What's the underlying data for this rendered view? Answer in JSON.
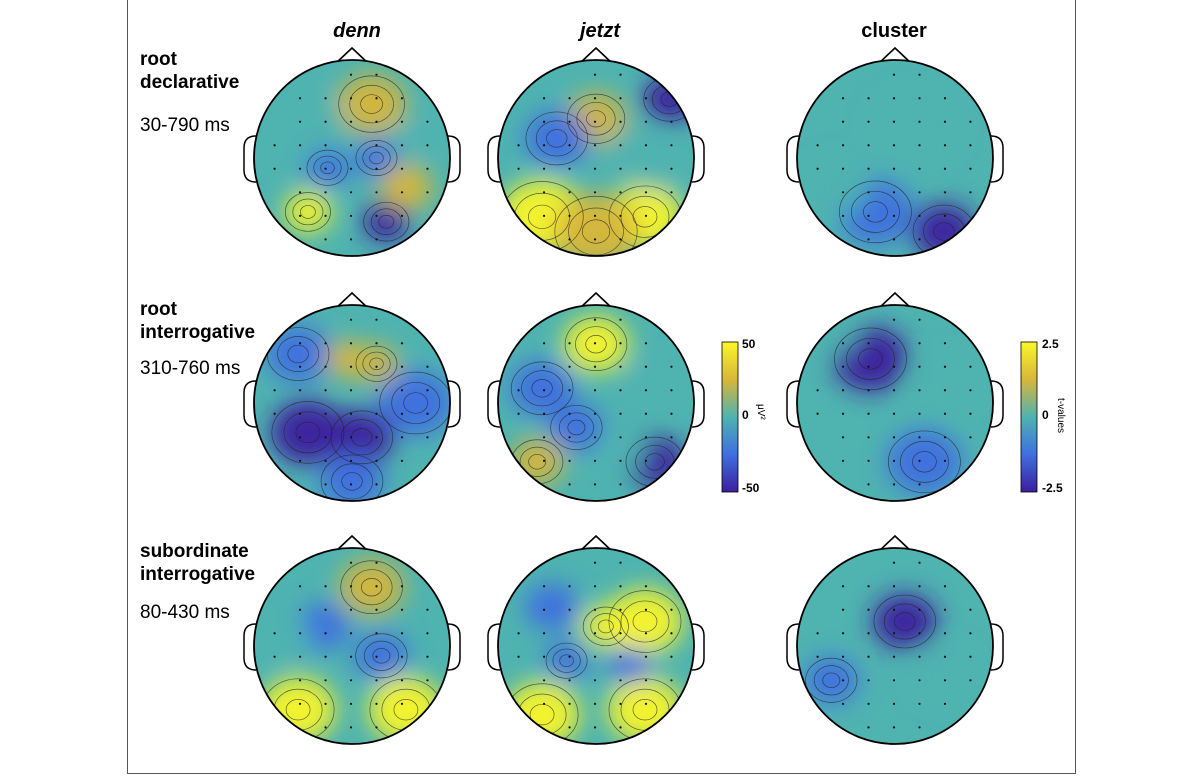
{
  "columns": [
    {
      "label": "denn",
      "italic": true
    },
    {
      "label": "jetzt",
      "italic": true
    },
    {
      "label": "cluster",
      "italic": false
    }
  ],
  "rows": [
    {
      "title": "root\ndeclarative",
      "time": "30-790 ms"
    },
    {
      "title": "root\ninterrogative",
      "time": "310-760 ms"
    },
    {
      "title": "subordinate\ninterrogative",
      "time": "80-430 ms"
    }
  ],
  "colorbars": [
    {
      "max": "50",
      "mid": "0",
      "min": "-50",
      "unit": "μV²"
    },
    {
      "max": "2.5",
      "mid": "0",
      "min": "-2.5",
      "unit": "t-values"
    }
  ],
  "colors": {
    "low": "#3b1f9e",
    "midlow": "#3f6fe0",
    "mid": "#4fb3b0",
    "midhigh": "#d8b63a",
    "high": "#fbf727"
  },
  "topomaps": [
    {
      "row": 0,
      "col": 0,
      "scale": "uv",
      "blobs": [
        [
          0.2,
          -0.55,
          0.32,
          0.6
        ],
        [
          -0.55,
          -0.3,
          0.45,
          0.3
        ],
        [
          -0.25,
          0.1,
          0.2,
          -0.6
        ],
        [
          0.25,
          0.0,
          0.2,
          -0.5
        ],
        [
          -0.45,
          0.55,
          0.22,
          0.9
        ],
        [
          0.35,
          0.65,
          0.22,
          -0.8
        ],
        [
          0.55,
          0.3,
          0.25,
          0.4
        ],
        [
          0.6,
          -0.2,
          0.2,
          0.2
        ]
      ]
    },
    {
      "row": 0,
      "col": 1,
      "scale": "uv",
      "blobs": [
        [
          0.0,
          -0.4,
          0.28,
          0.7
        ],
        [
          -0.4,
          -0.2,
          0.3,
          -0.5
        ],
        [
          0.75,
          -0.6,
          0.25,
          -0.8
        ],
        [
          0.4,
          -0.1,
          0.25,
          -0.3
        ],
        [
          -0.55,
          0.6,
          0.4,
          1.0
        ],
        [
          0.5,
          0.6,
          0.35,
          0.9
        ],
        [
          0.0,
          0.75,
          0.4,
          0.7
        ],
        [
          0.6,
          0.15,
          0.2,
          -0.2
        ]
      ]
    },
    {
      "row": 0,
      "col": 2,
      "scale": "t",
      "blobs": [
        [
          -0.2,
          0.55,
          0.35,
          -0.5
        ],
        [
          0.5,
          0.75,
          0.3,
          -0.8
        ],
        [
          0.2,
          -0.3,
          0.4,
          0.0
        ],
        [
          -0.6,
          0.3,
          0.3,
          -0.2
        ]
      ]
    },
    {
      "row": 1,
      "col": 0,
      "scale": "uv",
      "blobs": [
        [
          -0.45,
          0.3,
          0.35,
          -1.0
        ],
        [
          0.1,
          0.35,
          0.3,
          -0.8
        ],
        [
          0.65,
          0.0,
          0.35,
          -0.7
        ],
        [
          -0.55,
          -0.5,
          0.3,
          -0.6
        ],
        [
          0.25,
          -0.4,
          0.2,
          0.6
        ],
        [
          -0.05,
          -0.45,
          0.2,
          0.4
        ],
        [
          0.0,
          0.8,
          0.3,
          -0.5
        ]
      ]
    },
    {
      "row": 1,
      "col": 1,
      "scale": "uv",
      "blobs": [
        [
          0.0,
          -0.6,
          0.3,
          1.0
        ],
        [
          -0.55,
          -0.15,
          0.3,
          -0.5
        ],
        [
          0.6,
          0.6,
          0.28,
          -1.0
        ],
        [
          -0.2,
          0.25,
          0.25,
          -0.6
        ],
        [
          -0.6,
          0.6,
          0.25,
          0.5
        ],
        [
          0.3,
          0.5,
          0.2,
          0.2
        ],
        [
          0.6,
          -0.2,
          0.25,
          -0.2
        ]
      ]
    },
    {
      "row": 1,
      "col": 2,
      "scale": "t",
      "blobs": [
        [
          -0.25,
          -0.45,
          0.35,
          -0.8
        ],
        [
          0.3,
          0.6,
          0.35,
          -0.5
        ],
        [
          -0.6,
          -0.7,
          0.2,
          0.2
        ],
        [
          0.5,
          -0.2,
          0.3,
          0.0
        ]
      ]
    },
    {
      "row": 2,
      "col": 0,
      "scale": "uv",
      "blobs": [
        [
          -0.55,
          0.65,
          0.35,
          1.0
        ],
        [
          0.55,
          0.65,
          0.35,
          1.0
        ],
        [
          0.2,
          -0.6,
          0.3,
          0.7
        ],
        [
          -0.3,
          -0.2,
          0.25,
          -0.4
        ],
        [
          0.3,
          0.1,
          0.25,
          -0.5
        ],
        [
          -0.7,
          -0.1,
          0.25,
          -0.3
        ]
      ]
    },
    {
      "row": 2,
      "col": 1,
      "scale": "uv",
      "blobs": [
        [
          -0.55,
          0.7,
          0.35,
          1.0
        ],
        [
          0.5,
          0.65,
          0.35,
          1.0
        ],
        [
          0.5,
          -0.25,
          0.35,
          0.8
        ],
        [
          0.1,
          -0.2,
          0.22,
          0.8
        ],
        [
          -0.45,
          -0.4,
          0.25,
          -0.4
        ],
        [
          -0.3,
          0.15,
          0.2,
          -0.5
        ],
        [
          0.35,
          0.2,
          0.2,
          -0.4
        ]
      ]
    },
    {
      "row": 2,
      "col": 2,
      "scale": "t",
      "blobs": [
        [
          0.1,
          -0.25,
          0.3,
          -1.0
        ],
        [
          -0.65,
          0.35,
          0.25,
          -0.6
        ],
        [
          0.5,
          0.3,
          0.3,
          0.1
        ]
      ]
    }
  ]
}
